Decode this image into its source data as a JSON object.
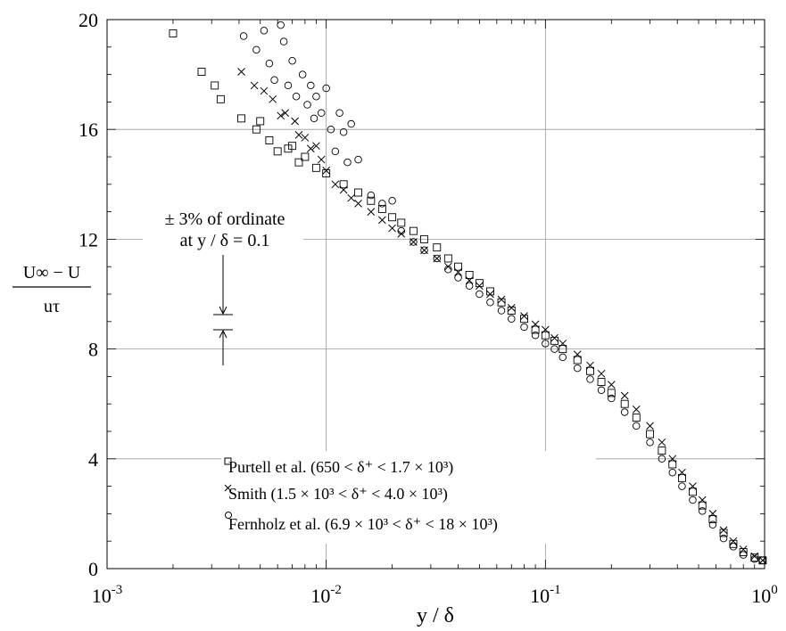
{
  "chart_data": {
    "type": "scatter",
    "x_scale": "log",
    "xlim": [
      0.001,
      1
    ],
    "ylim": [
      0,
      20
    ],
    "grid": true,
    "xlabel": "y / δ",
    "ylabel_top": "U∞ − U",
    "ylabel_bottom": "uτ",
    "x_ticks": [
      {
        "value": 0.001,
        "base": "10",
        "exp": "-3"
      },
      {
        "value": 0.01,
        "base": "10",
        "exp": "-2"
      },
      {
        "value": 0.1,
        "base": "10",
        "exp": "-1"
      },
      {
        "value": 1,
        "base": "10",
        "exp": "0"
      }
    ],
    "y_ticks": [
      0,
      4,
      8,
      12,
      16,
      20
    ],
    "annotation": {
      "line1": "± 3% of ordinate",
      "line2": "at y / δ = 0.1"
    },
    "legend": {
      "placement": "bottom-center",
      "entries": [
        {
          "marker": "square",
          "text": "Purtell et al. (650 <  δ⁺ < 1.7 × 10³)"
        },
        {
          "marker": "cross",
          "text": "Smith (1.5  × 10³ < δ⁺ < 4.0 × 10³)"
        },
        {
          "marker": "circle",
          "text": "Fernholz et al. (6.9  × 10³ < δ⁺ < 18 × 10³)"
        }
      ]
    },
    "series": [
      {
        "marker": "square",
        "points": [
          [
            0.002,
            19.5
          ],
          [
            0.0027,
            18.1
          ],
          [
            0.0031,
            17.6
          ],
          [
            0.0033,
            17.1
          ],
          [
            0.0041,
            16.4
          ],
          [
            0.0048,
            16.0
          ],
          [
            0.005,
            16.3
          ],
          [
            0.0055,
            15.6
          ],
          [
            0.006,
            15.2
          ],
          [
            0.0067,
            15.3
          ],
          [
            0.007,
            15.4
          ],
          [
            0.0075,
            14.8
          ],
          [
            0.008,
            15.0
          ],
          [
            0.009,
            14.6
          ],
          [
            0.01,
            14.4
          ],
          [
            0.012,
            14.0
          ],
          [
            0.014,
            13.7
          ],
          [
            0.016,
            13.4
          ],
          [
            0.018,
            13.1
          ],
          [
            0.02,
            12.8
          ],
          [
            0.022,
            12.6
          ],
          [
            0.025,
            12.3
          ],
          [
            0.028,
            12.0
          ],
          [
            0.032,
            11.7
          ],
          [
            0.036,
            11.3
          ],
          [
            0.04,
            11.0
          ],
          [
            0.045,
            10.7
          ],
          [
            0.05,
            10.4
          ],
          [
            0.056,
            10.1
          ],
          [
            0.063,
            9.7
          ],
          [
            0.07,
            9.4
          ],
          [
            0.08,
            9.1
          ],
          [
            0.09,
            8.7
          ],
          [
            0.1,
            8.5
          ],
          [
            0.11,
            8.3
          ],
          [
            0.12,
            8.0
          ],
          [
            0.14,
            7.6
          ],
          [
            0.16,
            7.2
          ],
          [
            0.18,
            6.8
          ],
          [
            0.2,
            6.4
          ],
          [
            0.23,
            6.0
          ],
          [
            0.26,
            5.5
          ],
          [
            0.3,
            4.9
          ],
          [
            0.34,
            4.3
          ],
          [
            0.38,
            3.8
          ],
          [
            0.42,
            3.3
          ],
          [
            0.47,
            2.8
          ],
          [
            0.52,
            2.3
          ],
          [
            0.58,
            1.8
          ],
          [
            0.65,
            1.3
          ],
          [
            0.72,
            0.9
          ],
          [
            0.8,
            0.6
          ],
          [
            0.9,
            0.4
          ],
          [
            0.98,
            0.3
          ]
        ]
      },
      {
        "marker": "cross",
        "points": [
          [
            0.0041,
            18.1
          ],
          [
            0.0047,
            17.6
          ],
          [
            0.0052,
            17.4
          ],
          [
            0.0057,
            17.1
          ],
          [
            0.0062,
            16.5
          ],
          [
            0.0065,
            16.6
          ],
          [
            0.0072,
            16.3
          ],
          [
            0.0075,
            15.8
          ],
          [
            0.008,
            15.7
          ],
          [
            0.0085,
            15.3
          ],
          [
            0.009,
            15.4
          ],
          [
            0.0095,
            14.9
          ],
          [
            0.01,
            14.5
          ],
          [
            0.011,
            14.0
          ],
          [
            0.012,
            13.8
          ],
          [
            0.013,
            13.5
          ],
          [
            0.014,
            13.3
          ],
          [
            0.016,
            13.0
          ],
          [
            0.018,
            12.7
          ],
          [
            0.02,
            12.4
          ],
          [
            0.022,
            12.2
          ],
          [
            0.025,
            11.9
          ],
          [
            0.028,
            11.6
          ],
          [
            0.032,
            11.3
          ],
          [
            0.036,
            11.0
          ],
          [
            0.04,
            10.8
          ],
          [
            0.045,
            10.5
          ],
          [
            0.05,
            10.3
          ],
          [
            0.056,
            10.0
          ],
          [
            0.063,
            9.8
          ],
          [
            0.07,
            9.5
          ],
          [
            0.08,
            9.2
          ],
          [
            0.09,
            8.9
          ],
          [
            0.1,
            8.7
          ],
          [
            0.11,
            8.4
          ],
          [
            0.12,
            8.2
          ],
          [
            0.14,
            7.8
          ],
          [
            0.16,
            7.4
          ],
          [
            0.18,
            7.1
          ],
          [
            0.2,
            6.7
          ],
          [
            0.23,
            6.3
          ],
          [
            0.26,
            5.8
          ],
          [
            0.3,
            5.2
          ],
          [
            0.34,
            4.6
          ],
          [
            0.38,
            4.0
          ],
          [
            0.42,
            3.5
          ],
          [
            0.47,
            3.0
          ],
          [
            0.52,
            2.5
          ],
          [
            0.58,
            2.0
          ],
          [
            0.65,
            1.4
          ],
          [
            0.72,
            1.0
          ],
          [
            0.8,
            0.7
          ],
          [
            0.9,
            0.45
          ],
          [
            0.98,
            0.3
          ]
        ]
      },
      {
        "marker": "circle",
        "points": [
          [
            0.0042,
            19.4
          ],
          [
            0.0048,
            18.9
          ],
          [
            0.0052,
            19.6
          ],
          [
            0.0055,
            18.4
          ],
          [
            0.0058,
            17.8
          ],
          [
            0.0062,
            19.8
          ],
          [
            0.0064,
            19.2
          ],
          [
            0.0067,
            17.6
          ],
          [
            0.007,
            18.5
          ],
          [
            0.0073,
            17.2
          ],
          [
            0.0078,
            18.0
          ],
          [
            0.0082,
            16.9
          ],
          [
            0.0085,
            17.6
          ],
          [
            0.0088,
            16.4
          ],
          [
            0.009,
            17.2
          ],
          [
            0.0095,
            16.6
          ],
          [
            0.01,
            17.5
          ],
          [
            0.0105,
            16.0
          ],
          [
            0.011,
            15.2
          ],
          [
            0.0115,
            16.6
          ],
          [
            0.012,
            15.9
          ],
          [
            0.0125,
            14.8
          ],
          [
            0.013,
            16.2
          ],
          [
            0.014,
            14.9
          ],
          [
            0.016,
            13.6
          ],
          [
            0.018,
            13.3
          ],
          [
            0.02,
            13.4
          ],
          [
            0.022,
            12.3
          ],
          [
            0.025,
            11.9
          ],
          [
            0.028,
            11.6
          ],
          [
            0.032,
            11.3
          ],
          [
            0.036,
            10.9
          ],
          [
            0.04,
            10.6
          ],
          [
            0.045,
            10.3
          ],
          [
            0.05,
            10.0
          ],
          [
            0.056,
            9.7
          ],
          [
            0.063,
            9.4
          ],
          [
            0.07,
            9.1
          ],
          [
            0.08,
            8.8
          ],
          [
            0.09,
            8.5
          ],
          [
            0.1,
            8.2
          ],
          [
            0.11,
            8.0
          ],
          [
            0.12,
            7.7
          ],
          [
            0.14,
            7.3
          ],
          [
            0.16,
            6.9
          ],
          [
            0.18,
            6.5
          ],
          [
            0.2,
            6.2
          ],
          [
            0.23,
            5.7
          ],
          [
            0.26,
            5.2
          ],
          [
            0.3,
            4.6
          ],
          [
            0.34,
            4.0
          ],
          [
            0.38,
            3.5
          ],
          [
            0.42,
            3.0
          ],
          [
            0.47,
            2.5
          ],
          [
            0.52,
            2.1
          ],
          [
            0.58,
            1.6
          ],
          [
            0.65,
            1.1
          ],
          [
            0.72,
            0.8
          ],
          [
            0.8,
            0.5
          ],
          [
            0.9,
            0.35
          ],
          [
            0.98,
            0.3
          ]
        ]
      }
    ]
  }
}
